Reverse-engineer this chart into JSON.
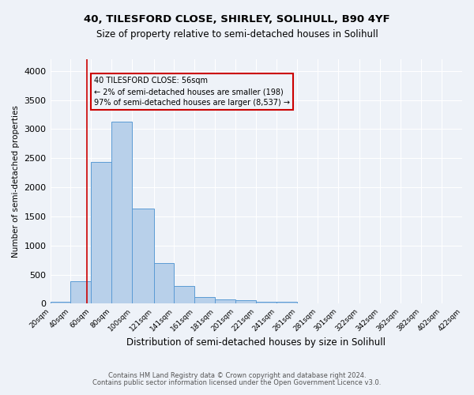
{
  "title": "40, TILESFORD CLOSE, SHIRLEY, SOLIHULL, B90 4YF",
  "subtitle": "Size of property relative to semi-detached houses in Solihull",
  "xlabel": "Distribution of semi-detached houses by size in Solihull",
  "ylabel_text": "Number of semi-detached properties",
  "footnote1": "Contains HM Land Registry data © Crown copyright and database right 2024.",
  "footnote2": "Contains public sector information licensed under the Open Government Licence v3.0.",
  "bar_edges": [
    20,
    40,
    60,
    80,
    100,
    121,
    141,
    161,
    181,
    201,
    221,
    241,
    261,
    281,
    301,
    322,
    342,
    362,
    382,
    402,
    422
  ],
  "bar_heights": [
    30,
    390,
    2430,
    3130,
    1630,
    700,
    300,
    120,
    80,
    60,
    40,
    30,
    0,
    0,
    0,
    0,
    0,
    0,
    0,
    0
  ],
  "bar_color": "#b8d0ea",
  "bar_edge_color": "#5b9bd5",
  "property_size": 56,
  "vline_color": "#cc0000",
  "annotation_text_line1": "40 TILESFORD CLOSE: 56sqm",
  "annotation_text_line2": "← 2% of semi-detached houses are smaller (198)",
  "annotation_text_line3": "97% of semi-detached houses are larger (8,537) →",
  "annotation_box_color": "#cc0000",
  "ylim": [
    0,
    4200
  ],
  "background_color": "#eef2f8",
  "grid_color": "#ffffff",
  "yticks": [
    0,
    500,
    1000,
    1500,
    2000,
    2500,
    3000,
    3500,
    4000
  ]
}
